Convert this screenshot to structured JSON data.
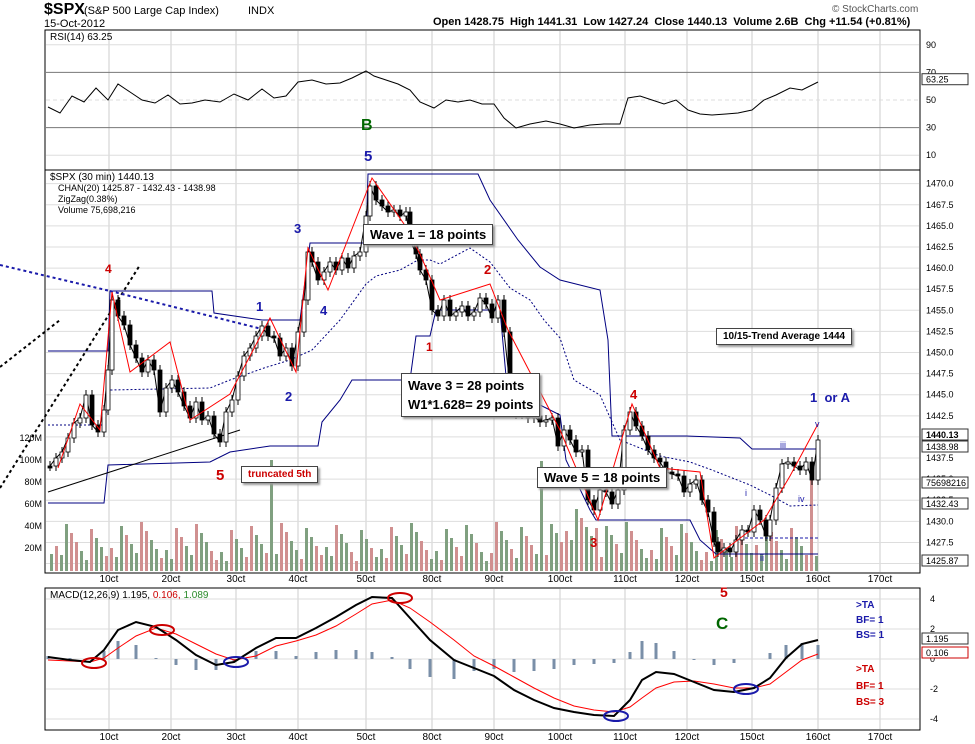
{
  "header": {
    "symbol": "$SPX",
    "name": "(S&P 500 Large Cap Index)",
    "exchange": "INDX",
    "date": "15-Oct-2012",
    "quote": "Open 1428.75  High 1441.31  Low 1427.24  Close 1440.13  Volume 2.6B  Chg +11.54 (+0.81%)",
    "watermark": "© StockCharts.com"
  },
  "rsi_panel": {
    "label": "RSI(14) 63.25",
    "current": 63.25,
    "levels": [
      "90",
      "70",
      "50",
      "30",
      "10"
    ],
    "current_label": "63.25",
    "b_label": "B"
  },
  "price_panel": {
    "legend": [
      "$SPX (30 min) 1440.13",
      "CHAN(20) 1425.87 - 1432.43 - 1438.98",
      "ZigZag(0.38%)",
      "Volume 75,698,216"
    ],
    "y_ticks": [
      "1470.0",
      "1467.5",
      "1465.0",
      "1462.5",
      "1460.0",
      "1457.5",
      "1455.0",
      "1452.5",
      "1450.0",
      "1447.5",
      "1445.0",
      "1442.5",
      "1440.0",
      "1437.5",
      "1435.0",
      "1432.5",
      "1430.0",
      "1427.5",
      "1425.0"
    ],
    "right_badges": [
      "1440.13",
      "1438.98",
      "75698216",
      "1432.43",
      "1425.87"
    ],
    "volume_ticks": [
      "120M",
      "100M",
      "80M",
      "60M",
      "40M",
      "20M"
    ],
    "x_ticks": [
      "10ct",
      "20ct",
      "30ct",
      "40ct",
      "50ct",
      "80ct",
      "90ct",
      "100ct",
      "110ct",
      "120ct",
      "150ct",
      "160ct",
      "170ct"
    ]
  },
  "annotations": {
    "wave1": "Wave 1 = 18 points",
    "wave3a": "Wave 3 = 28 points",
    "wave3b": "W1*1.628= 29 points",
    "wave5": "Wave 5 = 18 points",
    "trend": "10/15-Trend Average 1444",
    "truncated": "truncated 5th",
    "one_or_a": "1  or A",
    "C": "C",
    "nums_red": [
      "4",
      "5",
      "1",
      "2",
      "3",
      "4",
      "5",
      "5"
    ],
    "nums_blue": [
      "1",
      "2",
      "3",
      "4",
      "5"
    ],
    "small_roman": [
      "i",
      "ii",
      "iii",
      "iv",
      "v"
    ]
  },
  "macd_panel": {
    "label_name": "MACD(12,26,9)",
    "label_values": [
      "1.195,",
      "0.106,",
      "1.089"
    ],
    "y_ticks": [
      "4",
      "2",
      "0",
      "-2",
      "-4"
    ],
    "right_badges": [
      "1.195",
      "0.106"
    ],
    "ta_blue": [
      ">TA",
      "BF= 1",
      "BS= 1"
    ],
    "ta_red": [
      ">TA",
      "BF= 1",
      "BS= 3"
    ],
    "x_ticks": [
      "10ct",
      "20ct",
      "30ct",
      "40ct",
      "50ct",
      "80ct",
      "90ct",
      "100ct",
      "110ct",
      "120ct",
      "150ct",
      "160ct",
      "170ct"
    ]
  },
  "colors": {
    "price": "#000000",
    "channel": "#000080",
    "zigzag": "#ff0000",
    "vol_up": "#80a080",
    "vol_down": "#d09090",
    "macd": "#000000",
    "signal": "#ff0000",
    "hist": "#7a8fa8",
    "red_num": "#cc0000",
    "blue_num": "#1a1aaa",
    "green": "#006600"
  },
  "chart_data": {
    "type": "line",
    "title": "$SPX (S&P 500 Large Cap Index) 30 min",
    "x": [
      "10ct",
      "20ct",
      "30ct",
      "40ct",
      "50ct",
      "80ct",
      "90ct",
      "100ct",
      "110ct",
      "120ct",
      "150ct",
      "160ct"
    ],
    "series": [
      {
        "name": "$SPX (30 min) 1440.13",
        "values": [
          1440.0,
          1442.0,
          1444.0,
          1450.5,
          1461.0,
          1456.0,
          1452.5,
          1438.0,
          1437.0,
          1428.0,
          1430.5,
          1440.13
        ]
      },
      {
        "name": "CHAN(20) 1425.87 - 1432.43 - 1438.98",
        "values": [
          1431.5,
          1443.0,
          1442.0,
          1447.5,
          1457.0,
          1460.0,
          1454.5,
          1440.0,
          1432.0,
          1426.0,
          1429.0,
          1432.43
        ]
      }
    ],
    "ylim": [
      1424.0,
      1471.5
    ]
  }
}
